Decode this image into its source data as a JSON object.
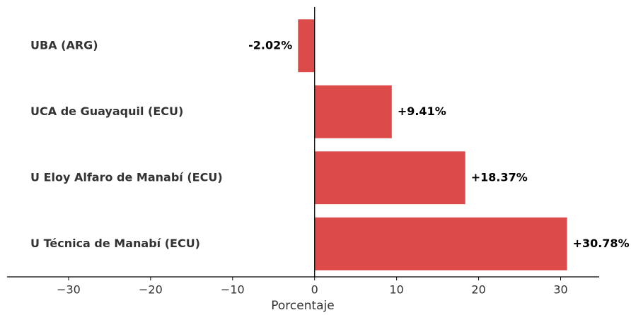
{
  "chart_data": {
    "type": "barh",
    "categories": [
      "UBA (ARG)",
      "UCA de Guayaquil (ECU)",
      "U Eloy Alfaro de Manabí (ECU)",
      "U Técnica de Manabí (ECU)"
    ],
    "values": [
      -2.02,
      9.41,
      18.37,
      30.78
    ],
    "value_labels": [
      "-2.02%",
      "+9.41%",
      "+18.37%",
      "+30.78%"
    ],
    "color": "#dc4a4a",
    "xlabel": "Porcentaje",
    "xlim": [
      -37.5,
      34.7
    ],
    "xticks": [
      {
        "value": -30,
        "label": "−30"
      },
      {
        "value": -20,
        "label": "−20"
      },
      {
        "value": -10,
        "label": "−10"
      },
      0,
      10,
      20,
      30
    ]
  }
}
